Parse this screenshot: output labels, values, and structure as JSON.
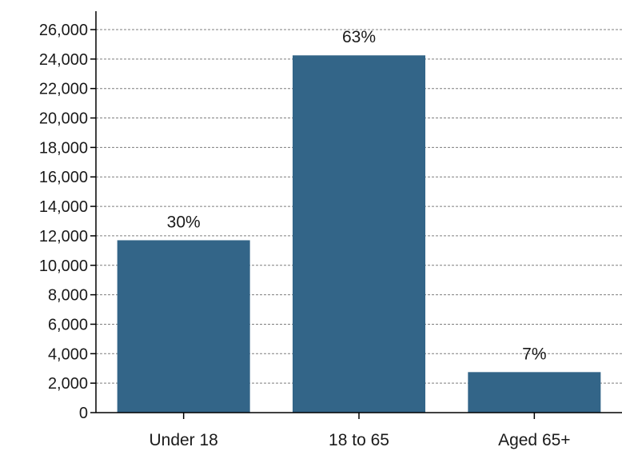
{
  "chart_data": {
    "type": "bar",
    "categories": [
      "Under 18",
      "18 to 65",
      "Aged 65+"
    ],
    "values": [
      11700,
      24250,
      2750
    ],
    "data_labels": [
      "30%",
      "63%",
      "7%"
    ],
    "ylim": [
      0,
      26000
    ],
    "yticks": [
      0,
      2000,
      4000,
      6000,
      8000,
      10000,
      12000,
      14000,
      16000,
      18000,
      20000,
      22000,
      24000,
      26000
    ],
    "ytick_labels": [
      "0",
      "2,000",
      "4,000",
      "6,000",
      "8,000",
      "10,000",
      "12,000",
      "14,000",
      "16,000",
      "18,000",
      "20,000",
      "22,000",
      "24,000",
      "26,000"
    ],
    "title": "",
    "xlabel": "",
    "ylabel": "",
    "grid": true,
    "bar_color": "#336588"
  }
}
